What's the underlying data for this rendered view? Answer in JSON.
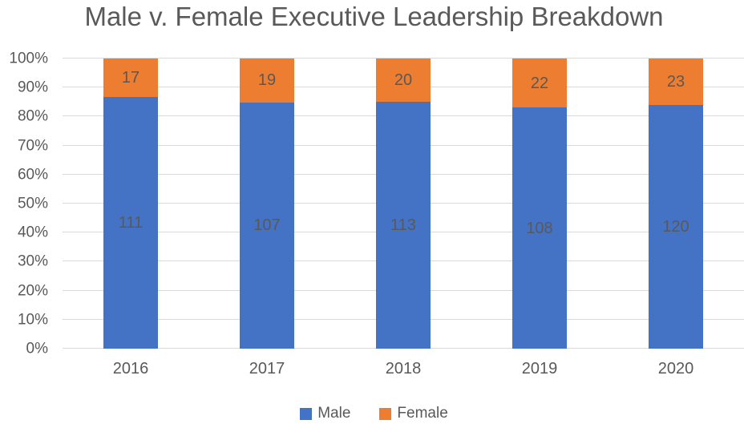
{
  "title": "Male v. Female Executive Leadership Breakdown",
  "colors": {
    "male": "#4472C4",
    "female": "#ED7D31",
    "text": "#595959",
    "gridline": "#D9D9D9",
    "background": "#FFFFFF"
  },
  "chart_data": {
    "type": "bar",
    "subtype": "stacked-100-percent",
    "title": "Male v. Female Executive Leadership Breakdown",
    "xlabel": "",
    "ylabel": "",
    "categories": [
      "2016",
      "2017",
      "2018",
      "2019",
      "2020"
    ],
    "series": [
      {
        "name": "Male",
        "color": "#4472C4",
        "values": [
          111,
          107,
          113,
          108,
          120
        ]
      },
      {
        "name": "Female",
        "color": "#ED7D31",
        "values": [
          17,
          19,
          20,
          22,
          23
        ]
      }
    ],
    "segment_percentages": {
      "male": [
        86.7,
        84.9,
        85.0,
        83.1,
        83.9
      ],
      "female": [
        13.3,
        15.1,
        15.0,
        16.9,
        16.1
      ]
    },
    "y_ticks": [
      "0%",
      "10%",
      "20%",
      "30%",
      "40%",
      "50%",
      "60%",
      "70%",
      "80%",
      "90%",
      "100%"
    ],
    "ylim": [
      0,
      100
    ],
    "grid": true,
    "legend_position": "bottom",
    "data_labels": "centered-in-segment"
  }
}
